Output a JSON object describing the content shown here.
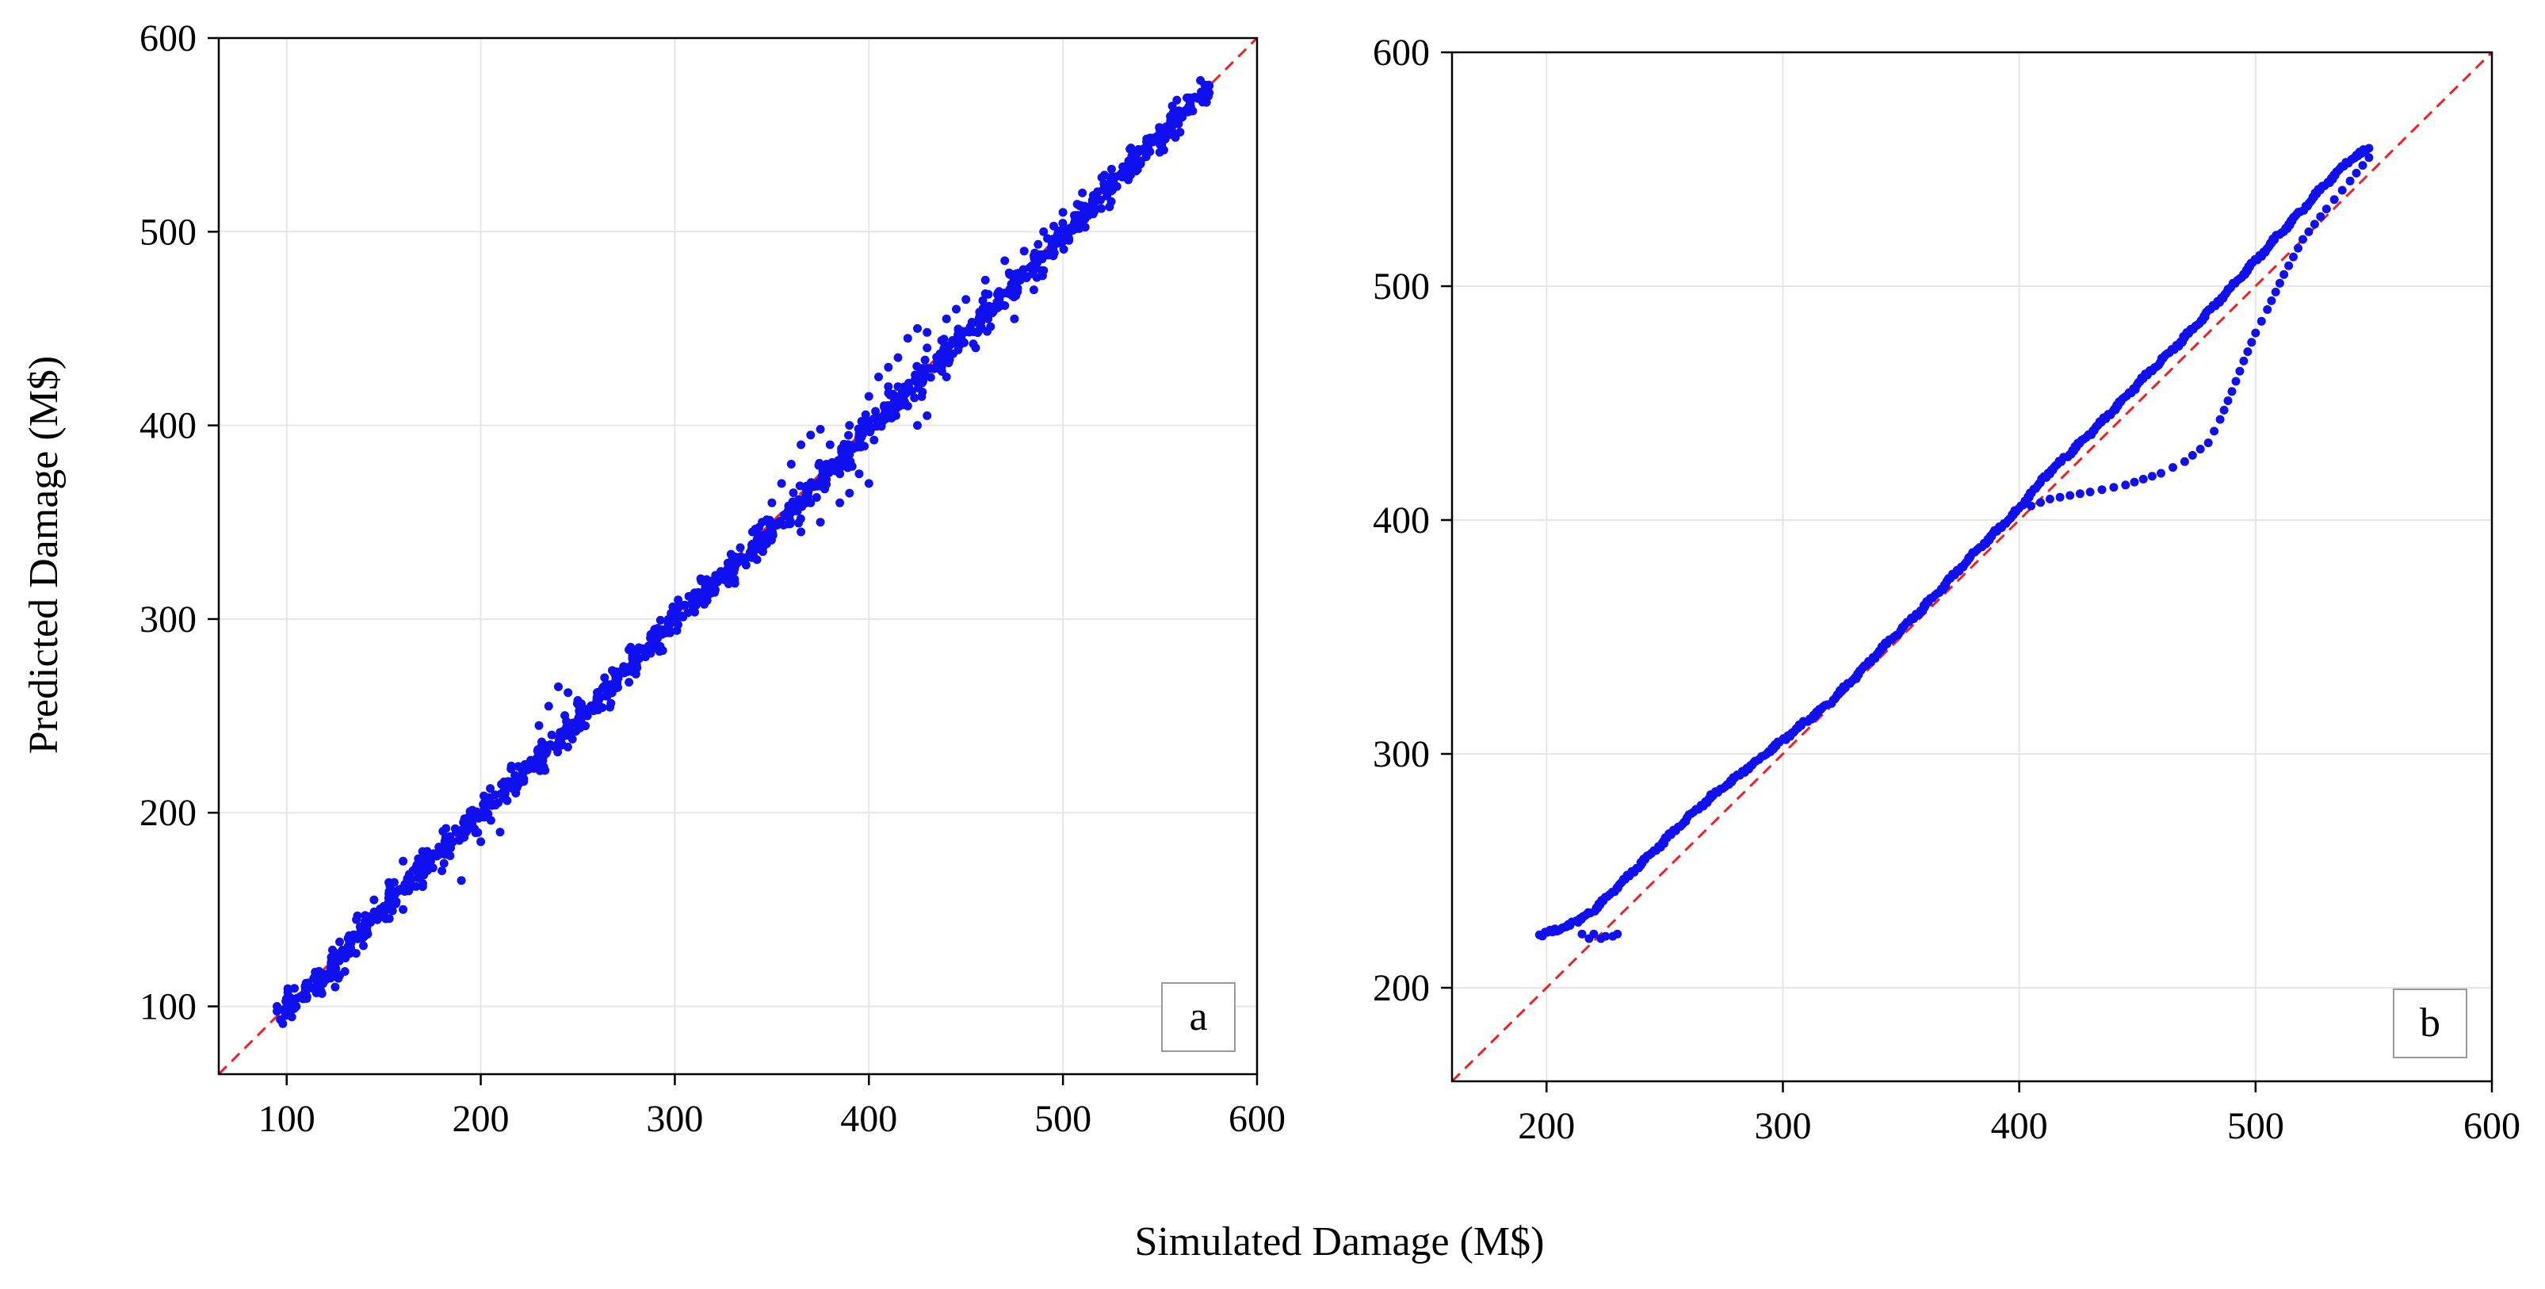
{
  "figure": {
    "shared_xlabel": "Simulated Damage (M$)",
    "shared_ylabel": "Predicted Damage (M$)",
    "colors": {
      "points": "#1010ee",
      "reference_line": "#ee2222",
      "grid": "#e6e6e6",
      "axes": "#000000"
    }
  },
  "chart_data": [
    {
      "type": "scatter",
      "panel_label": "a",
      "xlim": [
        65,
        600
      ],
      "ylim": [
        65,
        600
      ],
      "xticks": [
        100,
        200,
        300,
        400,
        500,
        600
      ],
      "yticks": [
        100,
        200,
        300,
        400,
        500,
        600
      ],
      "grid": true,
      "reference_line": "y = x",
      "trend": [
        [
          95,
          95
        ],
        [
          120,
          117
        ],
        [
          150,
          152
        ],
        [
          200,
          200
        ],
        [
          250,
          247
        ],
        [
          300,
          300
        ],
        [
          350,
          345
        ],
        [
          400,
          398
        ],
        [
          450,
          447
        ],
        [
          500,
          498
        ],
        [
          550,
          550
        ],
        [
          575,
          575
        ]
      ],
      "extra_points": [
        [
          160,
          175
        ],
        [
          170,
          180
        ],
        [
          180,
          170
        ],
        [
          190,
          165
        ],
        [
          200,
          185
        ],
        [
          210,
          190
        ],
        [
          150,
          150
        ],
        [
          145,
          155
        ],
        [
          165,
          170
        ],
        [
          160,
          150
        ],
        [
          130,
          118
        ],
        [
          125,
          110
        ],
        [
          115,
          108
        ],
        [
          110,
          112
        ],
        [
          105,
          100
        ],
        [
          240,
          265
        ],
        [
          245,
          262
        ],
        [
          250,
          258
        ],
        [
          235,
          255
        ],
        [
          230,
          245
        ],
        [
          255,
          250
        ],
        [
          245,
          240
        ],
        [
          260,
          262
        ],
        [
          320,
          318
        ],
        [
          330,
          328
        ],
        [
          335,
          330
        ],
        [
          340,
          345
        ],
        [
          345,
          350
        ],
        [
          350,
          360
        ],
        [
          355,
          370
        ],
        [
          360,
          380
        ],
        [
          365,
          390
        ],
        [
          370,
          395
        ],
        [
          375,
          398
        ],
        [
          380,
          390
        ],
        [
          390,
          385
        ],
        [
          395,
          375
        ],
        [
          400,
          370
        ],
        [
          385,
          375
        ],
        [
          370,
          360
        ],
        [
          360,
          355
        ],
        [
          365,
          345
        ],
        [
          375,
          350
        ],
        [
          385,
          360
        ],
        [
          390,
          365
        ],
        [
          395,
          395
        ],
        [
          390,
          400
        ],
        [
          400,
          415
        ],
        [
          405,
          425
        ],
        [
          410,
          430
        ],
        [
          415,
          420
        ],
        [
          420,
          410
        ],
        [
          425,
          400
        ],
        [
          430,
          405
        ],
        [
          410,
          420
        ],
        [
          415,
          435
        ],
        [
          420,
          445
        ],
        [
          425,
          450
        ],
        [
          430,
          448
        ],
        [
          440,
          455
        ],
        [
          445,
          460
        ],
        [
          450,
          465
        ],
        [
          460,
          468
        ],
        [
          455,
          440
        ],
        [
          440,
          425
        ],
        [
          430,
          440
        ],
        [
          460,
          475
        ],
        [
          470,
          485
        ],
        [
          480,
          490
        ],
        [
          490,
          500
        ],
        [
          500,
          510
        ],
        [
          510,
          520
        ],
        [
          520,
          528
        ],
        [
          530,
          530
        ],
        [
          540,
          535
        ],
        [
          550,
          545
        ],
        [
          475,
          455
        ],
        [
          485,
          470
        ],
        [
          490,
          480
        ],
        [
          500,
          495
        ]
      ]
    },
    {
      "type": "scatter",
      "panel_label": "b",
      "xlim": [
        160,
        600
      ],
      "ylim": [
        160,
        600
      ],
      "xticks": [
        200,
        300,
        400,
        500,
        600
      ],
      "yticks": [
        200,
        300,
        400,
        500,
        600
      ],
      "grid": true,
      "reference_line": "y = x",
      "curve": [
        [
          197,
          222
        ],
        [
          200,
          224
        ],
        [
          205,
          225
        ],
        [
          212,
          228
        ],
        [
          220,
          233
        ],
        [
          230,
          243
        ],
        [
          240,
          253
        ],
        [
          250,
          263
        ],
        [
          260,
          273
        ],
        [
          270,
          282
        ],
        [
          280,
          290
        ],
        [
          290,
          298
        ],
        [
          300,
          306
        ],
        [
          310,
          314
        ],
        [
          320,
          322
        ],
        [
          330,
          332
        ],
        [
          340,
          343
        ],
        [
          350,
          353
        ],
        [
          360,
          363
        ],
        [
          370,
          374
        ],
        [
          380,
          385
        ],
        [
          390,
          395
        ],
        [
          400,
          405
        ],
        [
          405,
          412
        ],
        [
          410,
          418
        ],
        [
          420,
          427
        ],
        [
          430,
          437
        ],
        [
          440,
          447
        ],
        [
          450,
          458
        ],
        [
          460,
          468
        ],
        [
          470,
          478
        ],
        [
          480,
          489
        ],
        [
          490,
          500
        ],
        [
          500,
          511
        ],
        [
          510,
          522
        ],
        [
          520,
          533
        ],
        [
          530,
          544
        ],
        [
          540,
          554
        ],
        [
          548,
          559
        ]
      ],
      "lower_branch": [
        [
          548,
          555
        ],
        [
          540,
          545
        ],
        [
          530,
          533
        ],
        [
          520,
          520
        ],
        [
          512,
          505
        ],
        [
          505,
          490
        ],
        [
          500,
          480
        ],
        [
          495,
          468
        ],
        [
          490,
          455
        ],
        [
          485,
          443
        ],
        [
          480,
          433
        ],
        [
          470,
          425
        ],
        [
          460,
          420
        ],
        [
          445,
          415
        ],
        [
          430,
          412
        ],
        [
          413,
          409
        ],
        [
          405,
          406
        ]
      ],
      "isolated_points": [
        [
          215,
          223
        ],
        [
          220,
          223
        ],
        [
          225,
          222
        ],
        [
          230,
          223
        ],
        [
          218,
          221
        ],
        [
          223,
          221
        ],
        [
          228,
          222
        ]
      ]
    }
  ]
}
